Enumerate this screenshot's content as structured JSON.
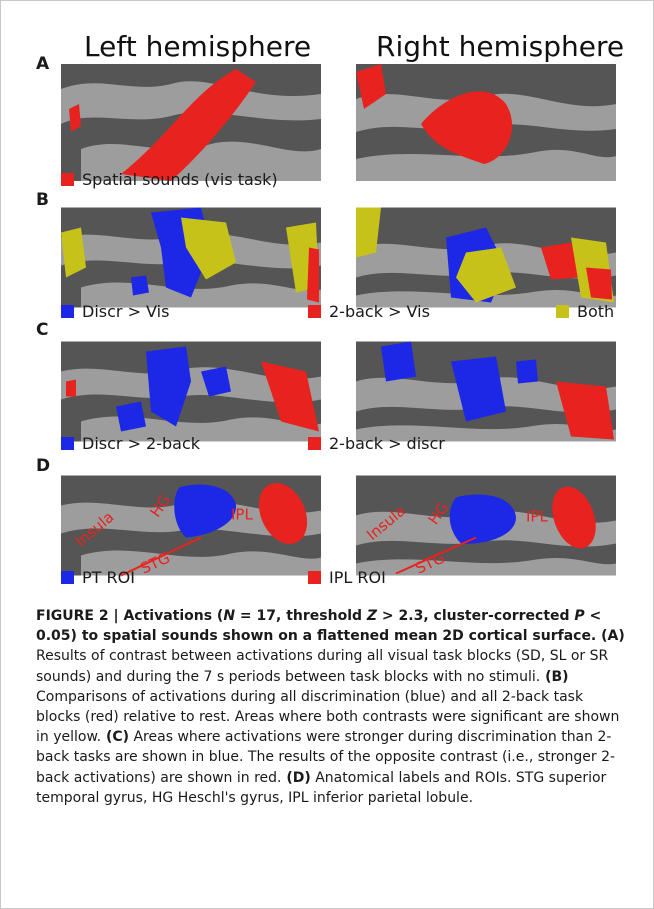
{
  "figure": {
    "titles": {
      "left": "Left hemisphere",
      "right": "Right hemisphere"
    },
    "panels": [
      {
        "letter": "A",
        "legend": [
          {
            "label": "Spatial sounds (vis task)",
            "color": "#e8231f"
          }
        ]
      },
      {
        "letter": "B",
        "legend": [
          {
            "label": "Discr > Vis",
            "color": "#1d27e6"
          },
          {
            "label": "2-back > Vis",
            "color": "#e8231f"
          },
          {
            "label": "Both",
            "color": "#c6c21a"
          }
        ]
      },
      {
        "letter": "C",
        "legend": [
          {
            "label": "Discr > 2-back",
            "color": "#1d27e6"
          },
          {
            "label": "2-back > discr",
            "color": "#e8231f"
          }
        ]
      },
      {
        "letter": "D",
        "legend": [
          {
            "label": "PT ROI",
            "color": "#1d27e6"
          },
          {
            "label": "IPL ROI",
            "color": "#e8231f"
          }
        ],
        "labels": {
          "insula": "Insula",
          "hg": "HG",
          "stg": "STG",
          "ipl": "IPL"
        }
      }
    ],
    "colors": {
      "dark_gray": "#555555",
      "light_gray": "#9d9d9d"
    }
  },
  "caption": {
    "label": "FIGURE 2 | ",
    "bold_a": "Activations (",
    "n_sym": "N",
    "bold_b": " = 17, threshold ",
    "z_sym": "Z",
    "bold_c": " > 2.3, cluster-corrected ",
    "p_sym": "P",
    "bold_d": " < 0.05) to spatial sounds shown on a flattened mean 2D cortical surface.",
    "a_tag": " (A)",
    "a_text": " Results of contrast between activations during all visual task blocks (SD, SL or SR sounds) and during the 7 s periods between task blocks with no stimuli.",
    "b_tag": " (B)",
    "b_text": " Comparisons of activations during all discrimination (blue) and all 2-back task blocks (red) relative to rest. Areas where both contrasts were significant are shown in yellow.",
    "c_tag": " (C)",
    "c_text": " Areas where activations were stronger during discrimination than 2-back tasks are shown in blue. The results of the opposite contrast (i.e., stronger 2-back activations) are shown in red.",
    "d_tag": " (D)",
    "d_text": " Anatomical labels and ROIs. STG superior temporal gyrus, HG Heschl's gyrus, IPL inferior parietal lobule."
  }
}
